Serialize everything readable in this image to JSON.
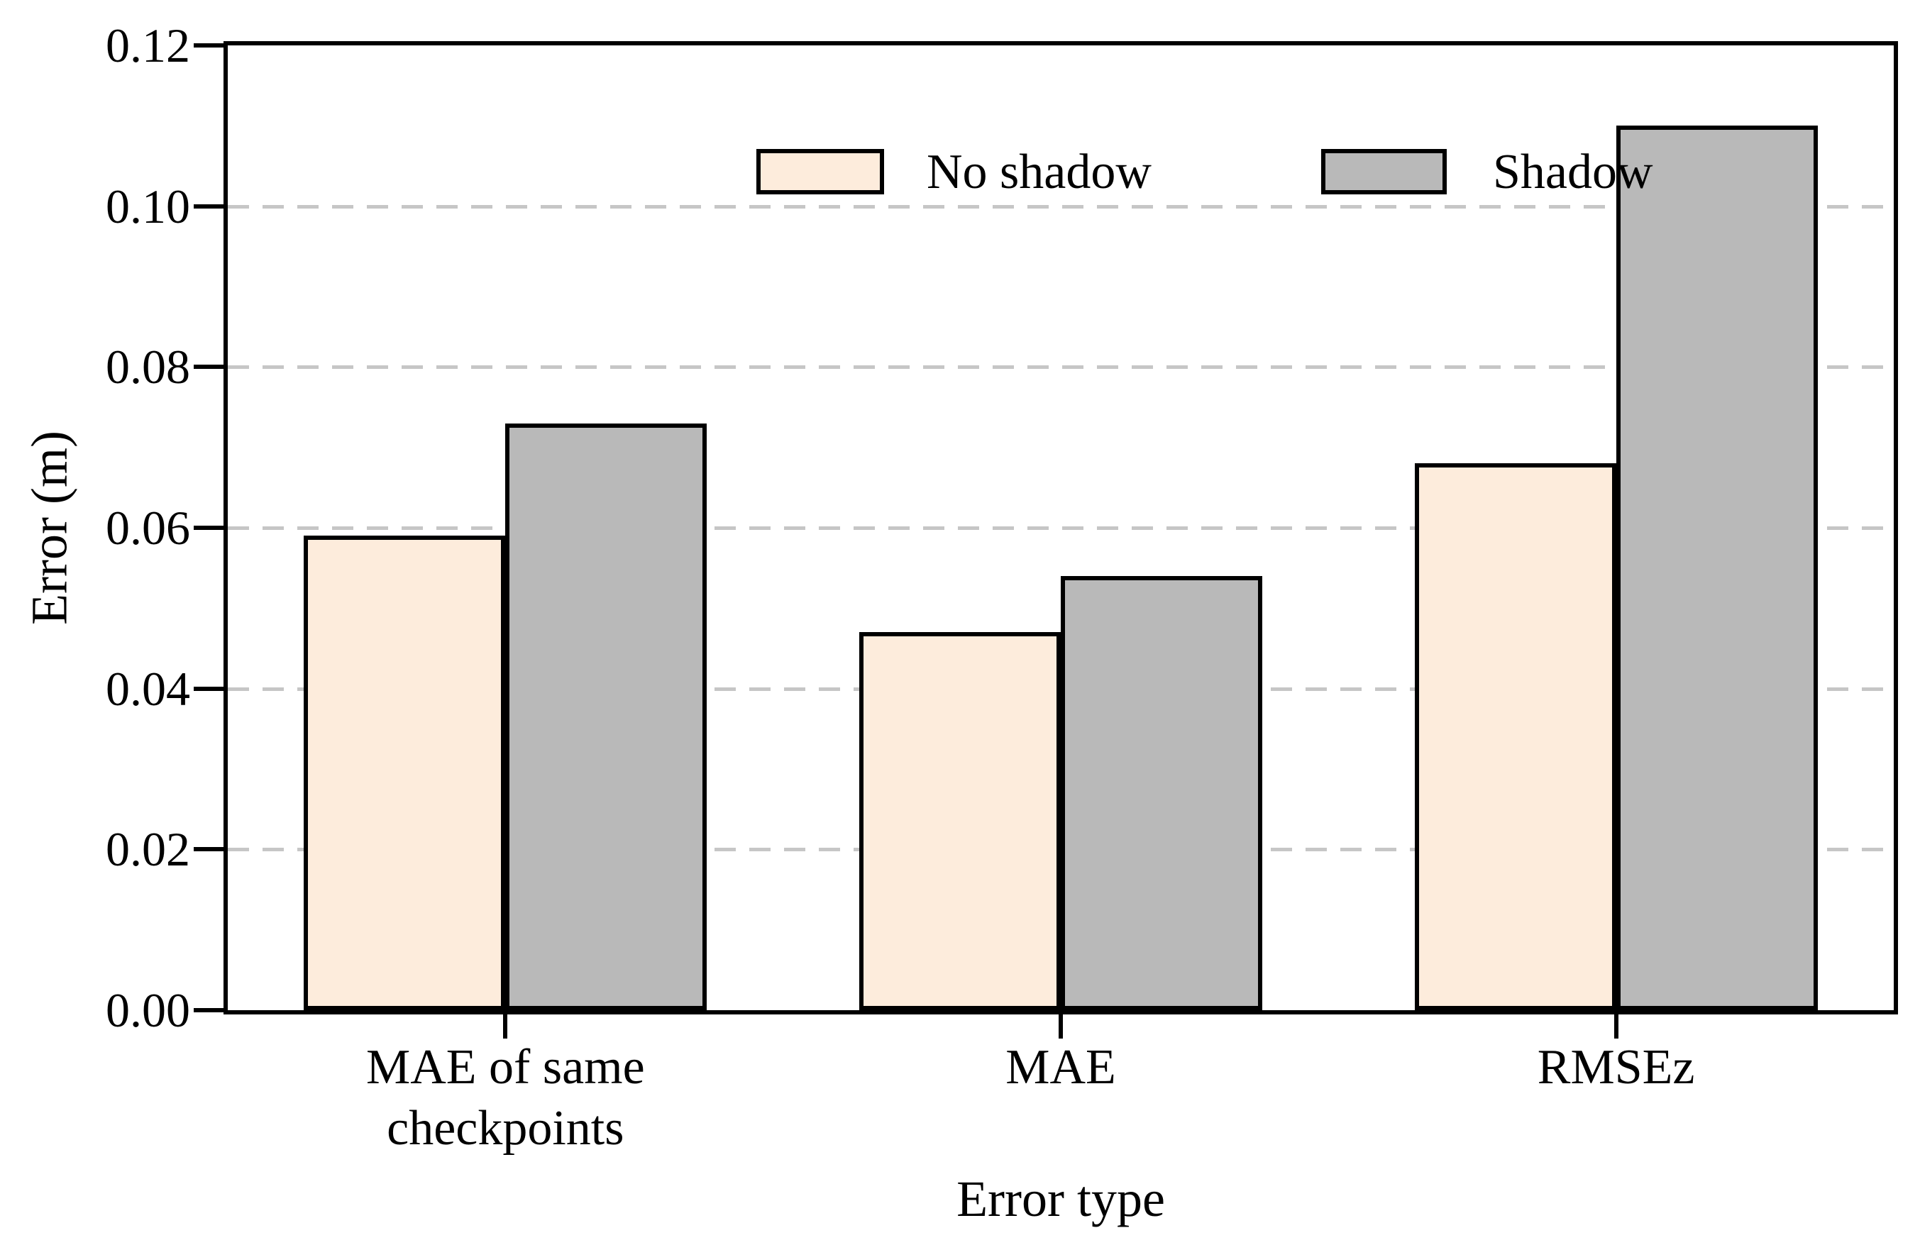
{
  "figure": {
    "background_color": "#ffffff",
    "text_color": "#000000"
  },
  "chart_data": {
    "type": "bar",
    "title": "",
    "xlabel": "Error type",
    "ylabel": "Error (m)",
    "categories": [
      "MAE of same\ncheckpoints",
      "MAE",
      "RMSEz"
    ],
    "series": [
      {
        "name": "No shadow",
        "color": "#fdecdc",
        "edge_color": "#000000",
        "values": [
          0.059,
          0.047,
          0.068
        ]
      },
      {
        "name": "Shadow",
        "color": "#b9b9b9",
        "edge_color": "#000000",
        "values": [
          0.073,
          0.054,
          0.11
        ]
      }
    ],
    "ylim": [
      0,
      0.12
    ],
    "y_ticks": [
      "0.00",
      "0.02",
      "0.04",
      "0.06",
      "0.08",
      "0.10",
      "0.12"
    ],
    "grid": {
      "axis": "y",
      "style": "dashed",
      "color": "#c6c6c6"
    },
    "legend": {
      "position": "upper center inside",
      "frame": false
    }
  }
}
